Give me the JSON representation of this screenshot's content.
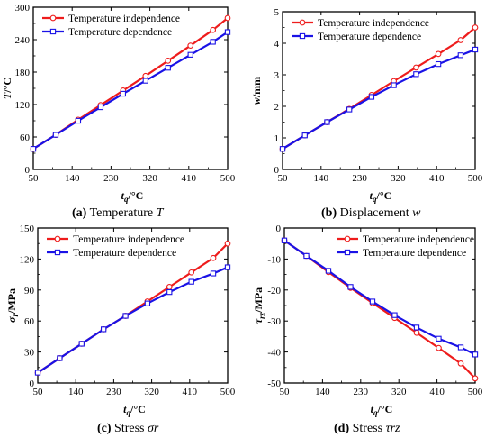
{
  "colors": {
    "temperature_independence": "#ee1c1c",
    "temperature_dependence": "#1a12e6",
    "axis": "#000000"
  },
  "captions": [
    {
      "tag": "(a)",
      "text": "Temperature",
      "symbol": "T"
    },
    {
      "tag": "(b)",
      "text": "Displacement",
      "symbol": "w"
    },
    {
      "tag": "(c)",
      "text": "Stress",
      "symbol": "σr"
    },
    {
      "tag": "(d)",
      "text": "Stress",
      "symbol": "τrz"
    }
  ],
  "chart_data": [
    {
      "type": "line",
      "xlabel": "t_q/°C",
      "ylabel": "T/°C",
      "xlim": [
        50,
        500
      ],
      "ylim": [
        0,
        300
      ],
      "xticks": [
        50,
        140,
        230,
        320,
        410,
        500
      ],
      "yticks": [
        0,
        60,
        120,
        180,
        240,
        300
      ],
      "legend_position": "top-left",
      "series": [
        {
          "name": "Temperature independence",
          "marker": "circle",
          "x": [
            50,
            102,
            154,
            206,
            258,
            310,
            362,
            414,
            466,
            500
          ],
          "y": [
            38,
            64,
            92,
            119,
            146,
            173,
            201,
            229,
            258,
            280
          ]
        },
        {
          "name": "Temperature dependence",
          "marker": "square",
          "x": [
            50,
            102,
            154,
            206,
            258,
            310,
            362,
            414,
            466,
            500
          ],
          "y": [
            38,
            64,
            90,
            115,
            140,
            164,
            188,
            212,
            236,
            254
          ]
        }
      ]
    },
    {
      "type": "line",
      "xlabel": "t_q/°C",
      "ylabel": "w/mm",
      "xlim": [
        50,
        500
      ],
      "ylim": [
        0,
        5
      ],
      "xticks": [
        50,
        140,
        230,
        320,
        410,
        500
      ],
      "yticks": [
        0,
        1,
        2,
        3,
        4,
        5
      ],
      "legend_position": "top-left",
      "series": [
        {
          "name": "Temperature independence",
          "marker": "circle",
          "x": [
            50,
            102,
            154,
            206,
            258,
            310,
            362,
            414,
            466,
            500
          ],
          "y": [
            0.65,
            1.08,
            1.5,
            1.92,
            2.36,
            2.8,
            3.23,
            3.66,
            4.1,
            4.5
          ]
        },
        {
          "name": "Temperature dependence",
          "marker": "square",
          "x": [
            50,
            102,
            154,
            206,
            258,
            310,
            362,
            414,
            466,
            500
          ],
          "y": [
            0.65,
            1.08,
            1.5,
            1.9,
            2.3,
            2.67,
            3.02,
            3.34,
            3.62,
            3.8
          ]
        }
      ]
    },
    {
      "type": "line",
      "xlabel": "t_q/°C",
      "ylabel": "σ_r/MPa",
      "xlim": [
        50,
        500
      ],
      "ylim": [
        0,
        150
      ],
      "xticks": [
        50,
        140,
        230,
        320,
        410,
        500
      ],
      "yticks": [
        0,
        30,
        60,
        90,
        120,
        150
      ],
      "legend_position": "top-left",
      "series": [
        {
          "name": "Temperature independence",
          "marker": "circle",
          "x": [
            50,
            102,
            154,
            206,
            258,
            310,
            362,
            414,
            466,
            500
          ],
          "y": [
            10,
            24,
            38,
            52,
            65,
            79,
            93,
            107,
            121,
            135
          ]
        },
        {
          "name": "Temperature dependence",
          "marker": "square",
          "x": [
            50,
            102,
            154,
            206,
            258,
            310,
            362,
            414,
            466,
            500
          ],
          "y": [
            10,
            24,
            38,
            52,
            65,
            77,
            88,
            98,
            106,
            112
          ]
        }
      ]
    },
    {
      "type": "line",
      "xlabel": "t_q/°C",
      "ylabel": "τ_rz/MPa",
      "xlim": [
        50,
        500
      ],
      "ylim": [
        -50,
        0
      ],
      "xticks": [
        50,
        140,
        230,
        320,
        410,
        500
      ],
      "yticks": [
        -50,
        -40,
        -30,
        -20,
        -10,
        0
      ],
      "legend_position": "top-right",
      "series": [
        {
          "name": "Temperature independence",
          "marker": "circle",
          "x": [
            50,
            102,
            154,
            206,
            258,
            310,
            362,
            414,
            466,
            500
          ],
          "y": [
            -4,
            -9,
            -14.2,
            -19.3,
            -24.2,
            -29,
            -33.8,
            -38.7,
            -43.7,
            -48.5
          ]
        },
        {
          "name": "Temperature dependence",
          "marker": "square",
          "x": [
            50,
            102,
            154,
            206,
            258,
            310,
            362,
            414,
            466,
            500
          ],
          "y": [
            -4,
            -9,
            -13.8,
            -19,
            -23.7,
            -28.1,
            -32.1,
            -35.7,
            -38.5,
            -40.8
          ]
        }
      ]
    }
  ]
}
